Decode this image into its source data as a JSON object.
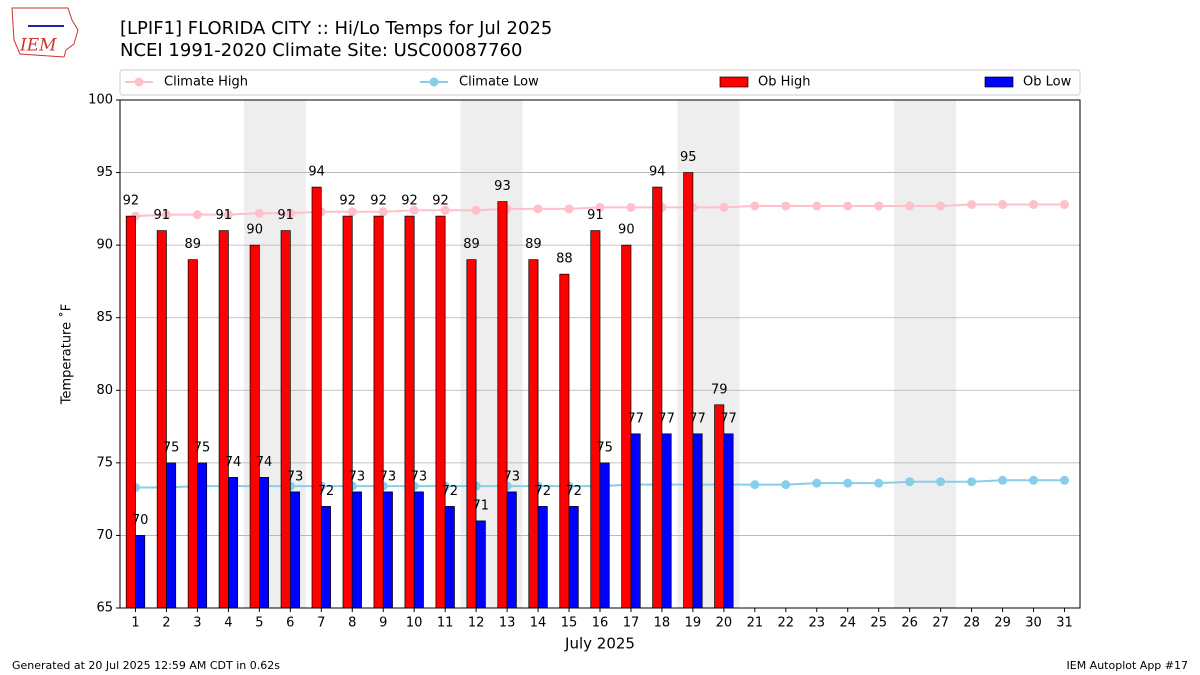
{
  "chart_data": {
    "type": "bar",
    "title": "[LPIF1] FLORIDA CITY :: Hi/Lo Temps for Jul 2025",
    "subtitle": "NCEI 1991-2020 Climate Site: USC00087760",
    "logo_text": "IEM",
    "x_label": "July 2025",
    "y_label": "Temperature ˚F",
    "footer_left": "Generated at 20 Jul 2025 12:59 AM CDT in 0.62s",
    "footer_right": "IEM Autoplot App #17",
    "x": [
      1,
      2,
      3,
      4,
      5,
      6,
      7,
      8,
      9,
      10,
      11,
      12,
      13,
      14,
      15,
      16,
      17,
      18,
      19,
      20,
      21,
      22,
      23,
      24,
      25,
      26,
      27,
      28,
      29,
      30,
      31
    ],
    "xlim": [
      0.5,
      31.5
    ],
    "xticks": [
      1,
      2,
      3,
      4,
      5,
      6,
      7,
      8,
      9,
      10,
      11,
      12,
      13,
      14,
      15,
      16,
      17,
      18,
      19,
      20,
      21,
      22,
      23,
      24,
      25,
      26,
      27,
      28,
      29,
      30,
      31
    ],
    "ylim": [
      65,
      100
    ],
    "yticks": [
      65,
      70,
      75,
      80,
      85,
      90,
      95,
      100
    ],
    "grid": true,
    "shaded_spans": [
      [
        4.5,
        6.5
      ],
      [
        11.5,
        13.5
      ],
      [
        18.5,
        20.5
      ],
      [
        25.5,
        27.5
      ]
    ],
    "shade_color": "#eeeeee",
    "series": [
      {
        "name": "Climate High",
        "kind": "line",
        "color": "#ffc0cb",
        "values": [
          92.0,
          92.1,
          92.1,
          92.1,
          92.2,
          92.2,
          92.3,
          92.3,
          92.3,
          92.4,
          92.4,
          92.4,
          92.5,
          92.5,
          92.5,
          92.6,
          92.6,
          92.6,
          92.6,
          92.6,
          92.7,
          92.7,
          92.7,
          92.7,
          92.7,
          92.7,
          92.7,
          92.8,
          92.8,
          92.8,
          92.8
        ]
      },
      {
        "name": "Climate Low",
        "kind": "line",
        "color": "#87ceeb",
        "values": [
          73.3,
          73.3,
          73.4,
          73.4,
          73.4,
          73.4,
          73.4,
          73.4,
          73.4,
          73.4,
          73.4,
          73.4,
          73.4,
          73.4,
          73.4,
          73.4,
          73.5,
          73.5,
          73.5,
          73.5,
          73.5,
          73.5,
          73.6,
          73.6,
          73.6,
          73.7,
          73.7,
          73.7,
          73.8,
          73.8,
          73.8
        ]
      },
      {
        "name": "Ob High",
        "kind": "bar",
        "color": "#ff0000",
        "values": [
          92,
          91,
          89,
          91,
          90,
          91,
          94,
          92,
          92,
          92,
          92,
          89,
          93,
          89,
          88,
          91,
          90,
          94,
          95,
          79,
          null,
          null,
          null,
          null,
          null,
          null,
          null,
          null,
          null,
          null,
          null
        ]
      },
      {
        "name": "Ob Low",
        "kind": "bar",
        "color": "#0000ff",
        "values": [
          70,
          75,
          75,
          74,
          74,
          73,
          72,
          73,
          73,
          73,
          72,
          71,
          73,
          72,
          72,
          75,
          77,
          77,
          77,
          77,
          null,
          null,
          null,
          null,
          null,
          null,
          null,
          null,
          null,
          null,
          null
        ]
      }
    ]
  }
}
